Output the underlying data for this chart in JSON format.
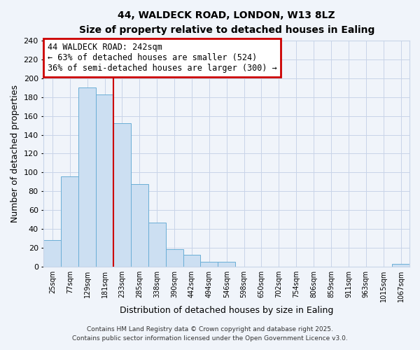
{
  "title": "44, WALDECK ROAD, LONDON, W13 8LZ",
  "subtitle": "Size of property relative to detached houses in Ealing",
  "xlabel": "Distribution of detached houses by size in Ealing",
  "ylabel": "Number of detached properties",
  "bin_labels": [
    "25sqm",
    "77sqm",
    "129sqm",
    "181sqm",
    "233sqm",
    "285sqm",
    "338sqm",
    "390sqm",
    "442sqm",
    "494sqm",
    "546sqm",
    "598sqm",
    "650sqm",
    "702sqm",
    "754sqm",
    "806sqm",
    "859sqm",
    "911sqm",
    "963sqm",
    "1015sqm",
    "1067sqm"
  ],
  "bar_values": [
    28,
    96,
    190,
    183,
    152,
    88,
    47,
    19,
    13,
    5,
    5,
    0,
    0,
    0,
    0,
    0,
    0,
    0,
    0,
    0,
    3
  ],
  "bar_color": "#ccdff2",
  "bar_edge_color": "#6aaed6",
  "vline_x": 4,
  "vline_color": "#cc0000",
  "ylim": [
    0,
    240
  ],
  "yticks": [
    0,
    20,
    40,
    60,
    80,
    100,
    120,
    140,
    160,
    180,
    200,
    220,
    240
  ],
  "annotation_title": "44 WALDECK ROAD: 242sqm",
  "annotation_line1": "← 63% of detached houses are smaller (524)",
  "annotation_line2": "36% of semi-detached houses are larger (300) →",
  "annotation_box_color": "#ffffff",
  "annotation_box_edge": "#cc0000",
  "footer_line1": "Contains HM Land Registry data © Crown copyright and database right 2025.",
  "footer_line2": "Contains public sector information licensed under the Open Government Licence v3.0.",
  "background_color": "#f0f4fa",
  "grid_color": "#c8d4e8"
}
